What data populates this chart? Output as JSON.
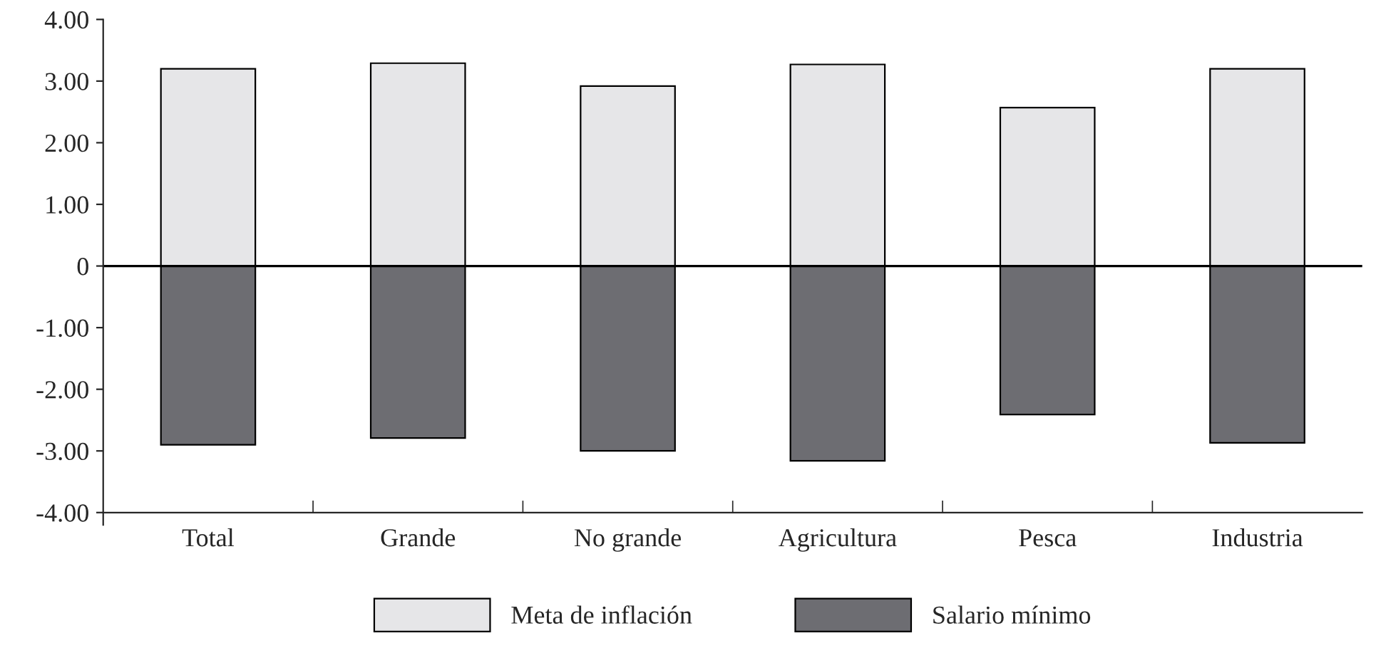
{
  "chart_data": {
    "type": "bar",
    "categories": [
      "Total",
      "Grande",
      "No grande",
      "Agricultura",
      "Pesca",
      "Industria"
    ],
    "series": [
      {
        "name": "Meta de inflación",
        "color": "#e6e6e8",
        "values": [
          3.2,
          3.29,
          2.92,
          3.27,
          2.57,
          3.2
        ]
      },
      {
        "name": "Salario mínimo",
        "color": "#6d6d72",
        "values": [
          -2.9,
          -2.79,
          -3.0,
          -3.16,
          -2.41,
          -2.87
        ]
      }
    ],
    "stacked": true,
    "ylim": [
      -4.2,
      4.0
    ],
    "yticks": [
      {
        "value": 4,
        "label": "4.00"
      },
      {
        "value": 3,
        "label": "3.00"
      },
      {
        "value": 2,
        "label": "2.00"
      },
      {
        "value": 1,
        "label": "1.00"
      },
      0,
      {
        "value": -1,
        "label": "-1.00"
      },
      {
        "value": -2,
        "label": "-2.00"
      },
      {
        "value": -3,
        "label": "-3.00"
      },
      {
        "value": -4,
        "label": "-4.00"
      }
    ],
    "ref_lines": [
      {
        "axis": "y",
        "value": 0,
        "color": "#000000"
      }
    ],
    "legend": "bottom",
    "grid": false
  }
}
